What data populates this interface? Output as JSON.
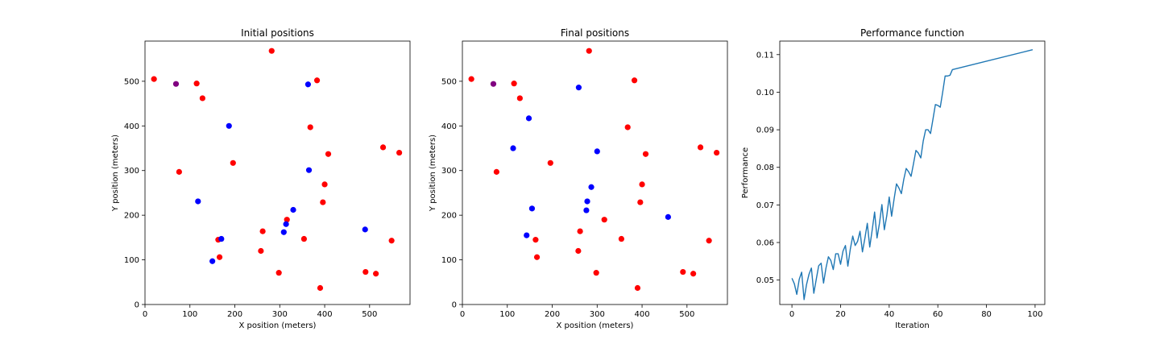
{
  "chart_data": [
    {
      "type": "scatter",
      "title": "Initial positions",
      "xlabel": "X position (meters)",
      "ylabel": "Y position (meters)",
      "xlim": [
        0,
        590
      ],
      "ylim": [
        0,
        590
      ],
      "xticks": [
        0,
        100,
        200,
        300,
        400,
        500
      ],
      "yticks": [
        0,
        100,
        200,
        300,
        400,
        500
      ],
      "grid": false,
      "series": [
        {
          "color": "#ff0000",
          "points": [
            [
              20,
              505
            ],
            [
              115,
              495
            ],
            [
              128,
              462
            ],
            [
              282,
              568
            ],
            [
              383,
              502
            ],
            [
              368,
              397
            ],
            [
              408,
              337
            ],
            [
              530,
              352
            ],
            [
              566,
              340
            ],
            [
              76,
              297
            ],
            [
              196,
              317
            ],
            [
              400,
              269
            ],
            [
              396,
              229
            ],
            [
              316,
              190
            ],
            [
              262,
              164
            ],
            [
              163,
              145
            ],
            [
              166,
              106
            ],
            [
              258,
              120
            ],
            [
              298,
              71
            ],
            [
              354,
              147
            ],
            [
              390,
              37
            ],
            [
              491,
              73
            ],
            [
              514,
              69
            ],
            [
              549,
              143
            ]
          ]
        },
        {
          "color": "#0000ff",
          "points": [
            [
              363,
              493
            ],
            [
              187,
              400
            ],
            [
              365,
              301
            ],
            [
              118,
              231
            ],
            [
              330,
              212
            ],
            [
              314,
              180
            ],
            [
              309,
              162
            ],
            [
              170,
              147
            ],
            [
              150,
              97
            ],
            [
              490,
              168
            ]
          ]
        },
        {
          "color": "#800080",
          "points": [
            [
              69,
              494
            ]
          ]
        }
      ]
    },
    {
      "type": "scatter",
      "title": "Final positions",
      "xlabel": "X position (meters)",
      "ylabel": "Y position (meters)",
      "xlim": [
        0,
        590
      ],
      "ylim": [
        0,
        590
      ],
      "xticks": [
        0,
        100,
        200,
        300,
        400,
        500
      ],
      "yticks": [
        0,
        100,
        200,
        300,
        400,
        500
      ],
      "grid": false,
      "series": [
        {
          "color": "#ff0000",
          "points": [
            [
              20,
              505
            ],
            [
              115,
              495
            ],
            [
              128,
              462
            ],
            [
              282,
              568
            ],
            [
              383,
              502
            ],
            [
              368,
              397
            ],
            [
              408,
              337
            ],
            [
              530,
              352
            ],
            [
              566,
              340
            ],
            [
              76,
              297
            ],
            [
              196,
              317
            ],
            [
              400,
              269
            ],
            [
              396,
              229
            ],
            [
              316,
              190
            ],
            [
              262,
              164
            ],
            [
              163,
              145
            ],
            [
              166,
              106
            ],
            [
              258,
              120
            ],
            [
              298,
              71
            ],
            [
              354,
              147
            ],
            [
              390,
              37
            ],
            [
              491,
              73
            ],
            [
              514,
              69
            ],
            [
              549,
              143
            ]
          ]
        },
        {
          "color": "#0000ff",
          "points": [
            [
              259,
              486
            ],
            [
              148,
              417
            ],
            [
              113,
              350
            ],
            [
              300,
              343
            ],
            [
              287,
              263
            ],
            [
              278,
              231
            ],
            [
              276,
              211
            ],
            [
              155,
              215
            ],
            [
              143,
              155
            ],
            [
              458,
              196
            ]
          ]
        },
        {
          "color": "#800080",
          "points": [
            [
              69,
              494
            ]
          ]
        }
      ]
    },
    {
      "type": "line",
      "title": "Performance function",
      "xlabel": "Iteration",
      "ylabel": "Performance",
      "xlim": [
        -5,
        104
      ],
      "ylim": [
        0.0435,
        0.1136
      ],
      "xticks": [
        0,
        20,
        40,
        60,
        80,
        100
      ],
      "yticks": [
        0.05,
        0.06,
        0.07,
        0.08,
        0.09,
        0.1,
        0.11
      ],
      "ytick_labels": [
        "0.05",
        "0.06",
        "0.07",
        "0.08",
        "0.09",
        "0.10",
        "0.11"
      ],
      "grid": false,
      "series": [
        {
          "color": "#1f77b4",
          "x": [
            0,
            1,
            2,
            3,
            4,
            5,
            6,
            7,
            8,
            9,
            10,
            11,
            12,
            13,
            14,
            15,
            16,
            17,
            18,
            19,
            20,
            21,
            22,
            23,
            24,
            25,
            26,
            27,
            28,
            29,
            30,
            31,
            32,
            33,
            34,
            35,
            36,
            37,
            38,
            39,
            40,
            41,
            42,
            43,
            44,
            45,
            46,
            47,
            48,
            49,
            50,
            51,
            52,
            53,
            54,
            55,
            56,
            57,
            58,
            59,
            60,
            61,
            62,
            63,
            64,
            65,
            66,
            99
          ],
          "y": [
            0.0505,
            0.049,
            0.0462,
            0.0502,
            0.0521,
            0.0448,
            0.0488,
            0.0515,
            0.0532,
            0.0465,
            0.0502,
            0.0538,
            0.0545,
            0.0492,
            0.0532,
            0.0562,
            0.0552,
            0.0528,
            0.057,
            0.057,
            0.0542,
            0.0577,
            0.0592,
            0.0537,
            0.0582,
            0.0617,
            0.0592,
            0.0603,
            0.063,
            0.0575,
            0.0611,
            0.0651,
            0.0588,
            0.0633,
            0.0681,
            0.0612,
            0.0651,
            0.0701,
            0.0634,
            0.0671,
            0.0721,
            0.067,
            0.0715,
            0.0756,
            0.0745,
            0.073,
            0.0768,
            0.0797,
            0.0788,
            0.0776,
            0.081,
            0.0845,
            0.0838,
            0.0825,
            0.087,
            0.09,
            0.09,
            0.089,
            0.0928,
            0.0967,
            0.0965,
            0.096,
            0.1,
            0.1043,
            0.1043,
            0.1045,
            0.106,
            0.1113
          ]
        }
      ]
    }
  ]
}
